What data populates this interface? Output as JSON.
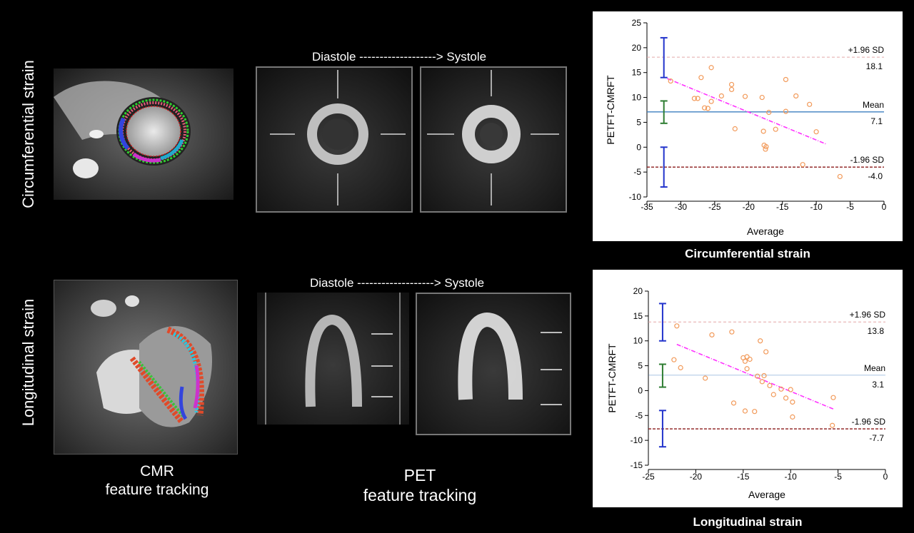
{
  "rows": {
    "top_label": "Circumferential strain",
    "bottom_label": "Longitudinal strain"
  },
  "panels": {
    "pet_title_top": "Diastole -------------------> Systole",
    "pet_title_bottom": "Diastole -------------------> Systole"
  },
  "captions": {
    "cmr": [
      "CMR",
      "feature tracking"
    ],
    "pet": [
      "PET",
      "feature tracking"
    ],
    "chart_top": "Circumferential strain",
    "chart_bottom": "Longitudinal strain"
  },
  "colors": {
    "points": "#f29a5a",
    "regression": "#ff33ff",
    "mean": "#3d7fc1",
    "loa": "#8b1a1a",
    "ci_mean": "#2e7d32",
    "ci_loa": "#2233cc"
  },
  "chart_data": [
    {
      "type": "scatter",
      "title": "",
      "xlabel": "Average",
      "ylabel": "PETFT-CMRFT",
      "xlim": [
        -35,
        0
      ],
      "ylim": [
        -10,
        25
      ],
      "xticks": [
        -35,
        -30,
        -25,
        -20,
        -15,
        -10,
        -5,
        0
      ],
      "yticks": [
        -10,
        -5,
        0,
        5,
        10,
        15,
        20,
        25
      ],
      "points": [
        [
          -31.5,
          13.3
        ],
        [
          -28,
          9.8
        ],
        [
          -27.5,
          9.8
        ],
        [
          -27,
          14
        ],
        [
          -26.5,
          7.9
        ],
        [
          -26,
          7.8
        ],
        [
          -25.5,
          16
        ],
        [
          -25.5,
          9.2
        ],
        [
          -24,
          10.3
        ],
        [
          -22.5,
          12.6
        ],
        [
          -22.5,
          11.6
        ],
        [
          -22,
          3.7
        ],
        [
          -20.5,
          10.2
        ],
        [
          -18,
          10
        ],
        [
          -17.8,
          3.2
        ],
        [
          -17.7,
          0.4
        ],
        [
          -17.5,
          -0.4
        ],
        [
          -17.4,
          0.1
        ],
        [
          -17,
          7
        ],
        [
          -16,
          3.6
        ],
        [
          -14.5,
          13.6
        ],
        [
          -14.5,
          7.2
        ],
        [
          -13,
          10.3
        ],
        [
          -12,
          -3.5
        ],
        [
          -11,
          8.6
        ],
        [
          -10,
          3.1
        ],
        [
          -6.5,
          -5.9
        ]
      ],
      "mean": 7.1,
      "upper_loa": 18.1,
      "lower_loa": -4.0,
      "upper_loa_label": "+1.96 SD",
      "mean_label": "Mean",
      "lower_loa_label": "-1.96 SD",
      "upper_loa_text": "18.1",
      "mean_text": "7.1",
      "lower_loa_text": "-4.0",
      "regression": [
        [
          -32,
          13.8
        ],
        [
          -8.5,
          0.6
        ]
      ],
      "ci_bars": [
        {
          "x": -32.5,
          "low": 14,
          "high": 22,
          "kind": "loa"
        },
        {
          "x": -32.5,
          "low": 4.8,
          "high": 9.3,
          "kind": "mean"
        },
        {
          "x": -32.5,
          "low": -8,
          "high": 0,
          "kind": "loa"
        }
      ]
    },
    {
      "type": "scatter",
      "title": "",
      "xlabel": "Average",
      "ylabel": "PETFT-CMRFT",
      "xlim": [
        -25,
        0
      ],
      "ylim": [
        -15,
        20
      ],
      "xticks": [
        -25,
        -20,
        -15,
        -10,
        -5,
        0
      ],
      "yticks": [
        -15,
        -10,
        -5,
        0,
        5,
        10,
        15,
        20
      ],
      "points": [
        [
          -22,
          13
        ],
        [
          -22.3,
          6.2
        ],
        [
          -21.6,
          4.6
        ],
        [
          -19,
          2.5
        ],
        [
          -18.3,
          11.2
        ],
        [
          -16.2,
          11.8
        ],
        [
          -16,
          -2.5
        ],
        [
          -15,
          6.6
        ],
        [
          -14.8,
          5.9
        ],
        [
          -14.6,
          6.8
        ],
        [
          -14.6,
          4.4
        ],
        [
          -14.3,
          6.3
        ],
        [
          -13.5,
          2.9
        ],
        [
          -13.2,
          10
        ],
        [
          -13,
          1.8
        ],
        [
          -12.8,
          3
        ],
        [
          -12.6,
          7.8
        ],
        [
          -12.2,
          1
        ],
        [
          -11.8,
          -0.8
        ],
        [
          -11,
          0.3
        ],
        [
          -10.5,
          -1.5
        ],
        [
          -10,
          0.2
        ],
        [
          -9.8,
          -2.3
        ],
        [
          -9.8,
          -5.3
        ],
        [
          -14.8,
          -4.1
        ],
        [
          -13.8,
          -4.2
        ],
        [
          -5.5,
          -1.4
        ],
        [
          -5.6,
          -7
        ]
      ],
      "mean": 3.1,
      "upper_loa": 13.8,
      "lower_loa": -7.7,
      "upper_loa_label": "+1.96 SD",
      "mean_label": "Mean",
      "lower_loa_label": "-1.96 SD",
      "upper_loa_text": "13.8",
      "mean_text": "3.1",
      "lower_loa_text": "-7.7",
      "regression": [
        [
          -22,
          9.3
        ],
        [
          -5.5,
          -3.7
        ]
      ],
      "ci_bars": [
        {
          "x": -23.5,
          "low": 10,
          "high": 17.5,
          "kind": "loa"
        },
        {
          "x": -23.5,
          "low": 0.7,
          "high": 5.3,
          "kind": "mean"
        },
        {
          "x": -23.5,
          "low": -11.3,
          "high": -4,
          "kind": "loa"
        }
      ]
    }
  ]
}
